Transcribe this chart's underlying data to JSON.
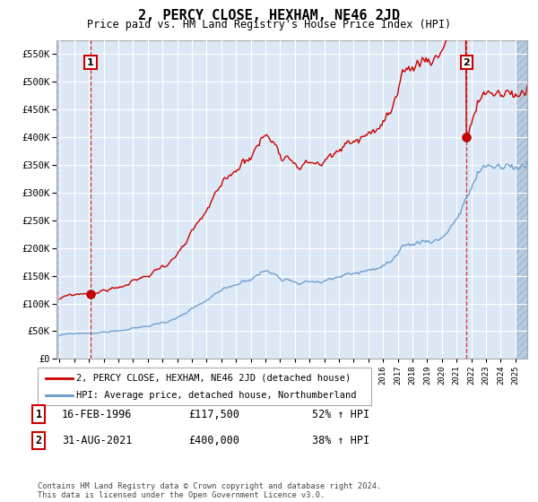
{
  "title": "2, PERCY CLOSE, HEXHAM, NE46 2JD",
  "subtitle": "Price paid vs. HM Land Registry's House Price Index (HPI)",
  "ytick_values": [
    0,
    50000,
    100000,
    150000,
    200000,
    250000,
    300000,
    350000,
    400000,
    450000,
    500000,
    550000
  ],
  "ylim": [
    0,
    575000
  ],
  "xlim_start": 1993.8,
  "xlim_end": 2025.8,
  "sale1_year": 1996.12,
  "sale1_price": 117500,
  "sale2_year": 2021.67,
  "sale2_price": 400000,
  "legend_line1": "2, PERCY CLOSE, HEXHAM, NE46 2JD (detached house)",
  "legend_line2": "HPI: Average price, detached house, Northumberland",
  "annotation1_label": "1",
  "annotation1_date": "16-FEB-1996",
  "annotation1_price": "£117,500",
  "annotation1_hpi": "52% ↑ HPI",
  "annotation2_label": "2",
  "annotation2_date": "31-AUG-2021",
  "annotation2_price": "£400,000",
  "annotation2_hpi": "38% ↑ HPI",
  "footer": "Contains HM Land Registry data © Crown copyright and database right 2024.\nThis data is licensed under the Open Government Licence v3.0.",
  "line1_color": "#cc0000",
  "line2_color": "#6699cc",
  "bg_color": "#dce8f5",
  "grid_color": "#ffffff",
  "box_color": "#cc0000",
  "vline_color": "#cc0000"
}
